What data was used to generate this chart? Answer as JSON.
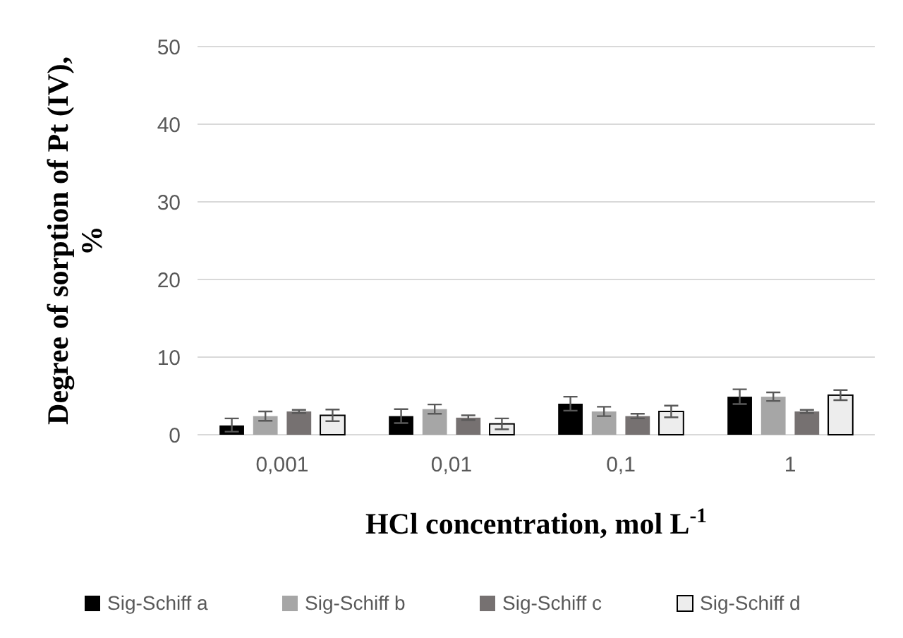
{
  "chart_data": {
    "type": "bar",
    "xlabel": "HCl concentration, mol L$^{-1}$",
    "ylabel": "Degree of sorption of Pt (IV), %",
    "categories": [
      "0,001",
      "0,01",
      "0,1",
      "1"
    ],
    "series": [
      {
        "name": "Sig-Schiff a",
        "color": "#000000",
        "values": [
          1.2,
          2.4,
          4.0,
          4.9
        ],
        "errors": [
          [
            0.4,
            2.1
          ],
          0.9,
          0.9,
          0.95
        ]
      },
      {
        "name": "Sig-Schiff b",
        "color": "#a6a6a6",
        "values": [
          2.4,
          3.3,
          3.0,
          4.9
        ],
        "errors": [
          0.6,
          0.6,
          0.6,
          0.55
        ]
      },
      {
        "name": "Sig-Schiff c",
        "color": "#767171",
        "values": [
          3.0,
          2.2,
          2.4,
          3.0
        ],
        "errors": [
          0.2,
          0.3,
          0.3,
          0.2
        ]
      },
      {
        "name": "Sig-Schiff d",
        "color": "#ededed",
        "values": [
          2.5,
          1.4,
          3.0,
          5.1
        ],
        "errors": [
          0.75,
          0.7,
          0.75,
          0.65
        ]
      }
    ],
    "ylim": [
      0,
      50
    ],
    "yticks": [
      0,
      10,
      20,
      30,
      40,
      50
    ],
    "grid": "y",
    "legend": "bottom"
  }
}
